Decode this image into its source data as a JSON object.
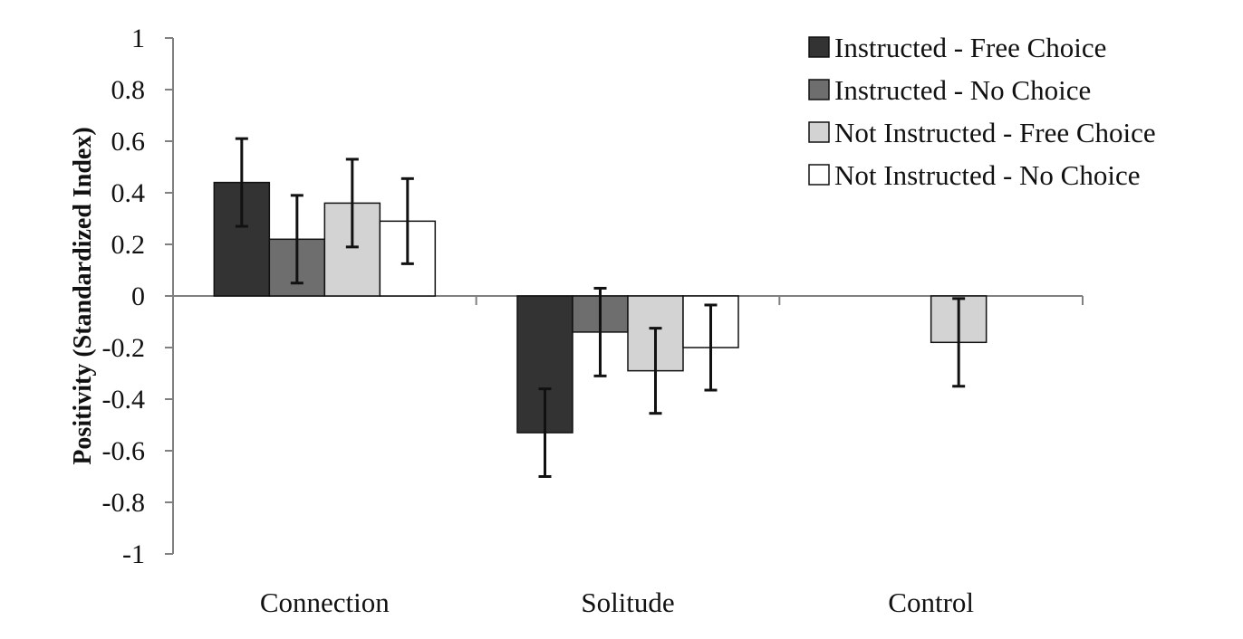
{
  "chart_data": {
    "type": "bar",
    "title": "",
    "xlabel": "",
    "ylabel": "Positivity (Standardized Index)",
    "ylim": [
      -1,
      1
    ],
    "yticks": [
      1,
      0.8,
      0.6,
      0.4,
      0.2,
      0,
      -0.2,
      -0.4,
      -0.6,
      -0.8,
      -1
    ],
    "ytick_labels": [
      "1",
      "0.8",
      "0.6",
      "0.4",
      "0.2",
      "0",
      "-0.2",
      "-0.4",
      "-0.6",
      "-0.8",
      "-1"
    ],
    "categories": [
      "Connection",
      "Solitude",
      "Control"
    ],
    "legend_position": "top-right",
    "series": [
      {
        "name": "Instructed - Free Choice",
        "color": "#333333",
        "values": [
          0.44,
          -0.53,
          null
        ],
        "error": [
          0.17,
          0.17,
          null
        ]
      },
      {
        "name": "Instructed - No Choice",
        "color": "#6e6e6e",
        "values": [
          0.22,
          -0.14,
          null
        ],
        "error": [
          0.17,
          0.17,
          null
        ]
      },
      {
        "name": "Not Instructed - Free Choice",
        "color": "#d3d3d3",
        "values": [
          0.36,
          -0.29,
          -0.18
        ],
        "error": [
          0.17,
          0.165,
          0.17
        ]
      },
      {
        "name": "Not Instructed - No Choice",
        "color": "#ffffff",
        "values": [
          0.29,
          -0.2,
          null
        ],
        "error": [
          0.165,
          0.165,
          null
        ]
      }
    ]
  }
}
